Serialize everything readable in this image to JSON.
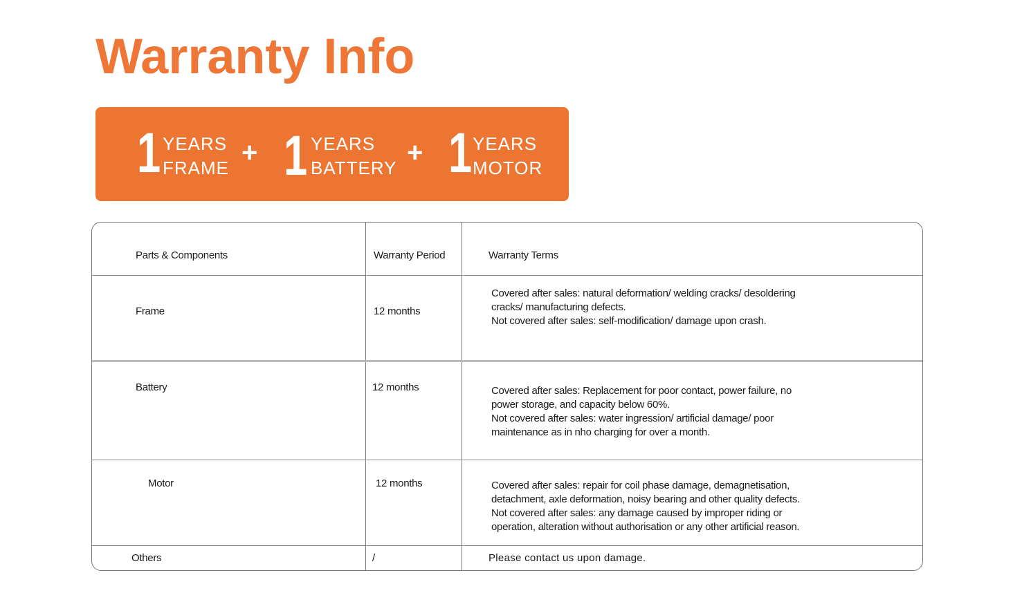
{
  "title": "Warranty Info",
  "colors": {
    "accent": "#ed7532"
  },
  "banner": [
    {
      "number": "1",
      "unit": "YEARS",
      "part": "FRAME"
    },
    {
      "number": "1",
      "unit": "YEARS",
      "part": "BATTERY"
    },
    {
      "number": "1",
      "unit": "YEARS",
      "part": "MOTOR"
    }
  ],
  "plus": "+",
  "table": {
    "headers": [
      "Parts & Components",
      "Warranty Period",
      "Warranty Terms"
    ],
    "rows": [
      {
        "part": "Frame",
        "period": "12 months",
        "terms": [
          "Covered after sales: natural deformation/ welding cracks/ desoldering",
          "cracks/ manufacturing defects.",
          "Not covered after sales: self-modification/ damage upon crash."
        ]
      },
      {
        "part": "Battery",
        "period": "12 months",
        "terms": [
          "Covered after sales: Replacement for poor contact, power failure, no",
          "power storage, and capacity below 60%.",
          "Not covered after sales: water ingression/ artificial damage/ poor",
          "maintenance as in nho charging for over a month."
        ]
      },
      {
        "part": "Motor",
        "period": "12 months",
        "terms": [
          "Covered after sales:  repair for coil phase damage, demagnetisation,",
          "detachment, axle deformation, noisy bearing and other quality defects.",
          "Not covered after sales: any damage caused by improper riding or",
          "operation, alteration without authorisation or any other artificial reason."
        ]
      },
      {
        "part": "Others",
        "period": "/",
        "terms": [
          "Please contact us upon damage."
        ]
      }
    ]
  }
}
